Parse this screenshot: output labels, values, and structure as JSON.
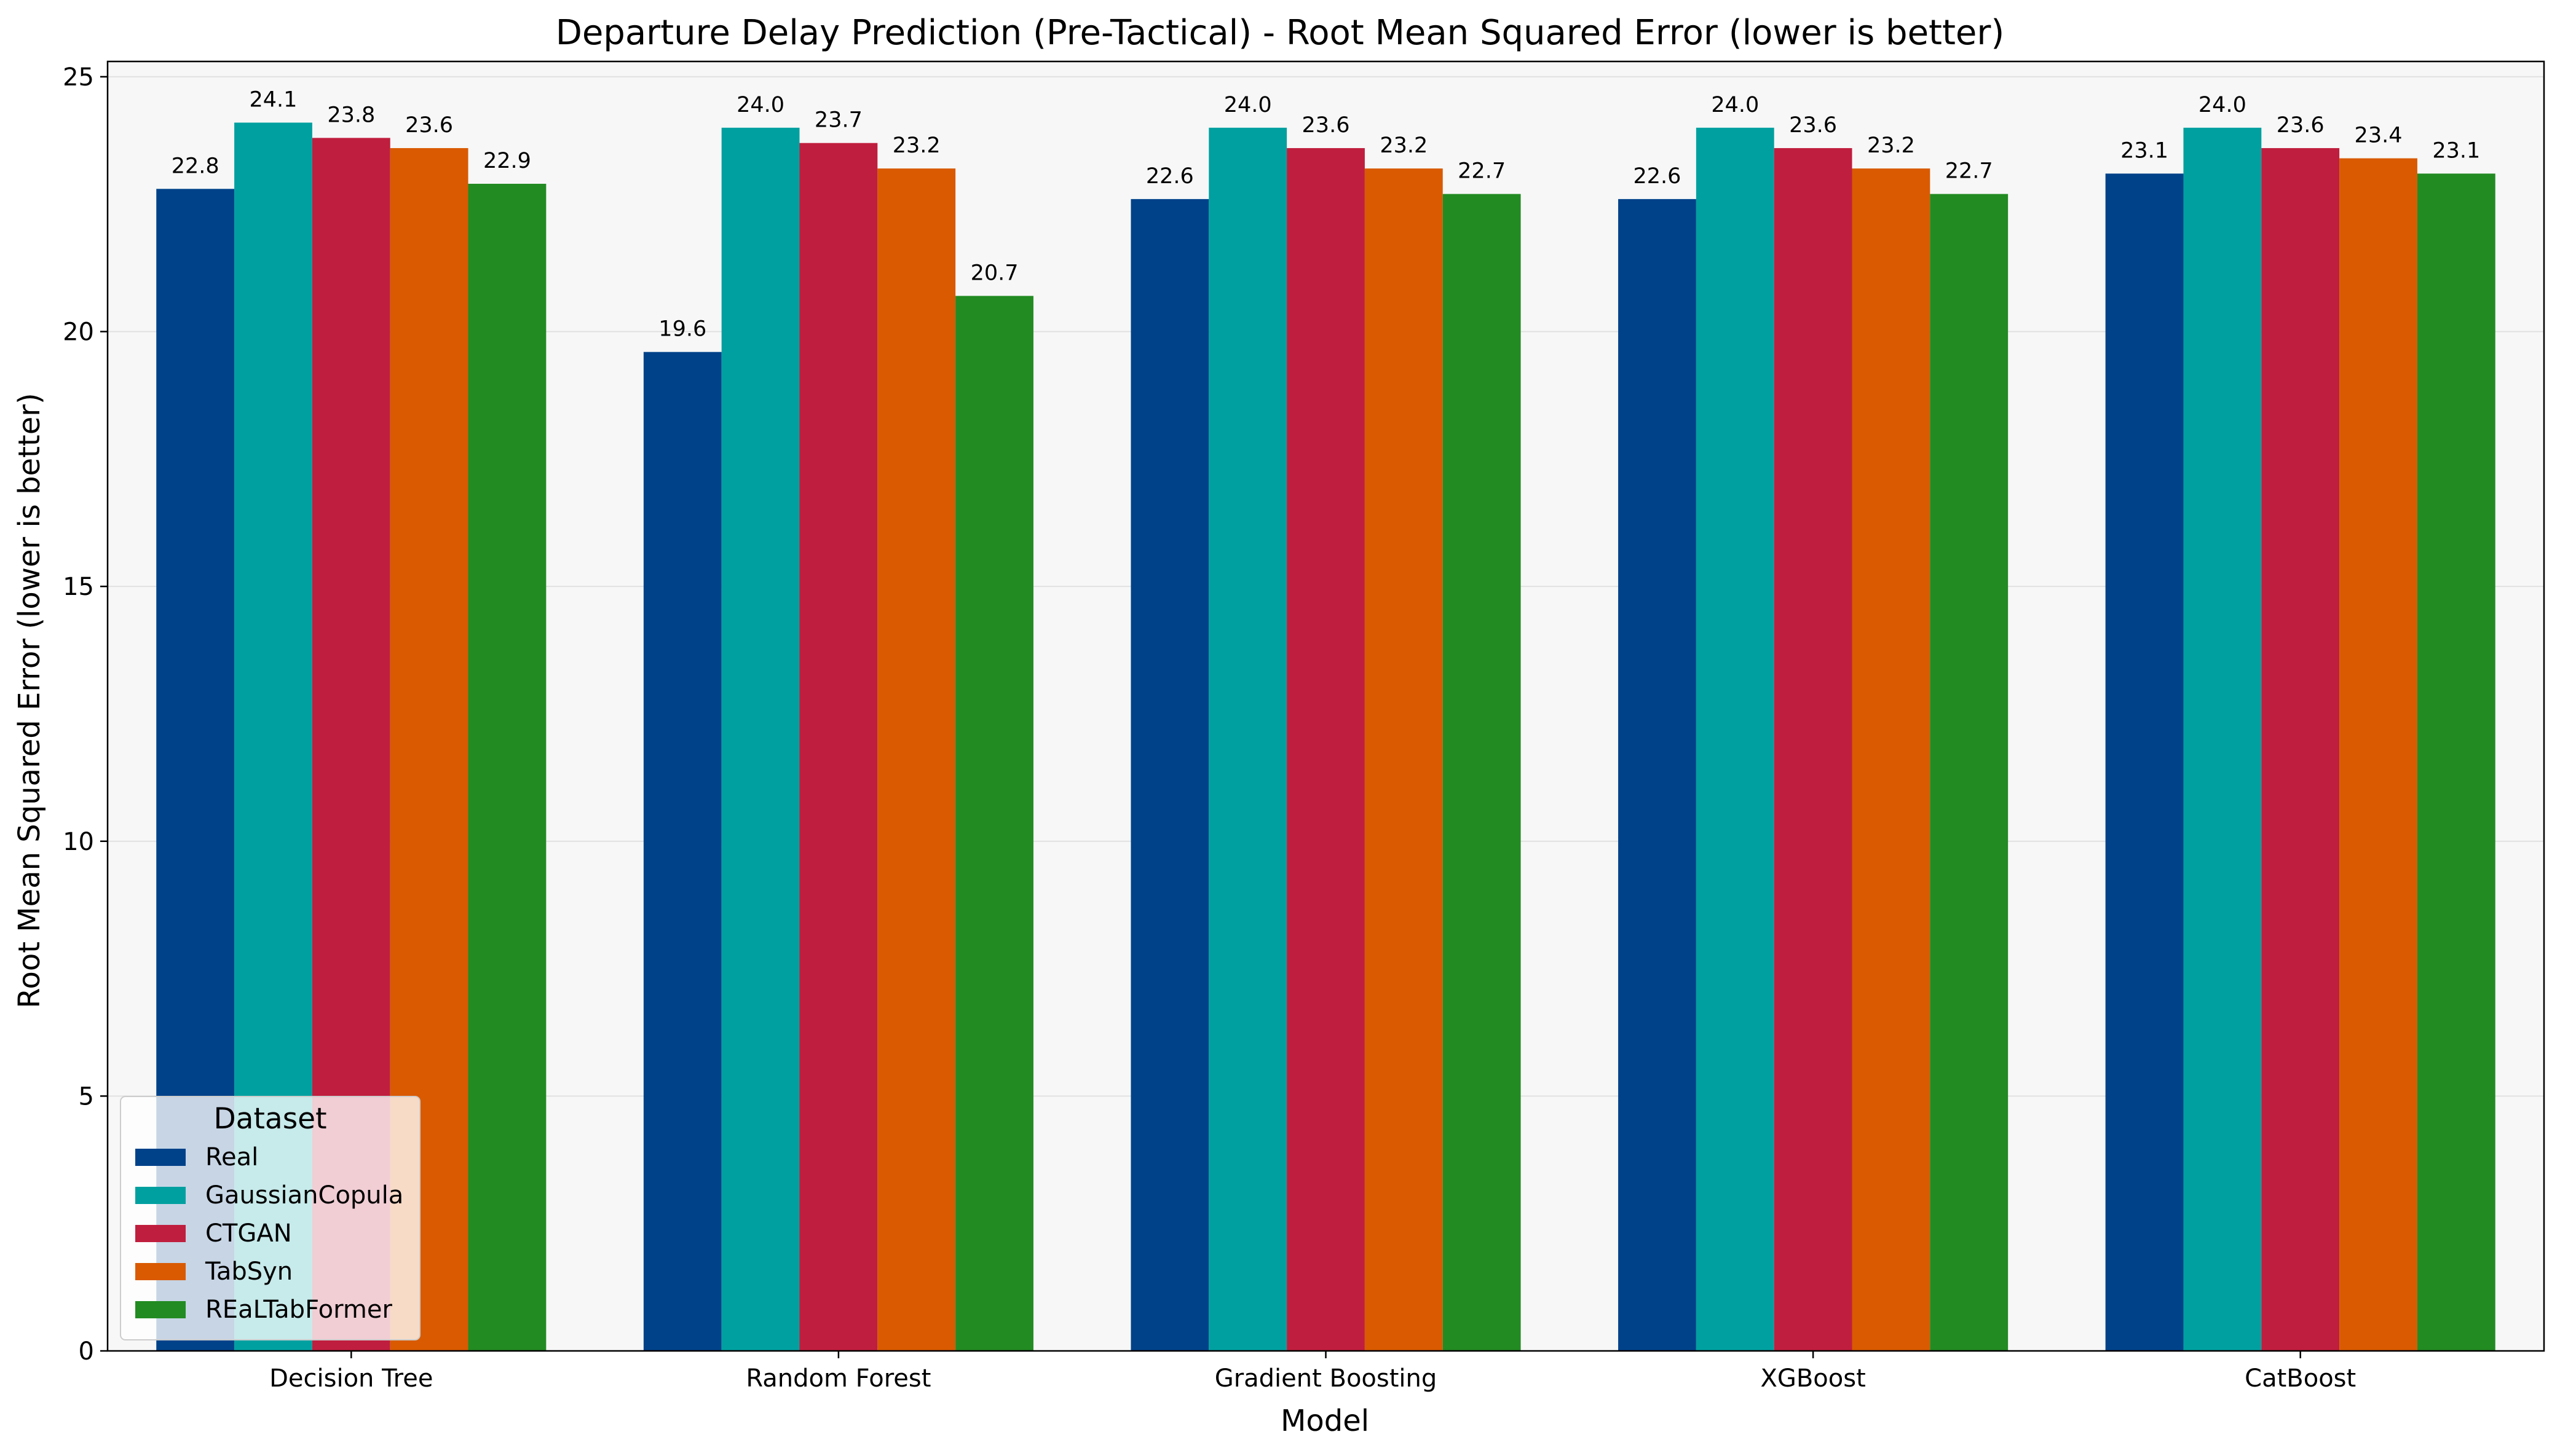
{
  "chart_data": {
    "type": "bar",
    "title": "Departure Delay Prediction (Pre-Tactical) - Root Mean Squared Error (lower is better)",
    "xlabel": "Model",
    "ylabel": "Root Mean Squared Error (lower is better)",
    "categories": [
      "Decision Tree",
      "Random Forest",
      "Gradient Boosting",
      "XGBoost",
      "CatBoost"
    ],
    "ylim": [
      0,
      25.3
    ],
    "yticks": [
      0,
      5,
      10,
      15,
      20,
      25
    ],
    "grid": "horizontal",
    "legend": {
      "title": "Dataset",
      "placement": "lower-left"
    },
    "series": [
      {
        "name": "Real",
        "color": "#00428a",
        "values": [
          22.8,
          19.6,
          22.6,
          22.6,
          23.1
        ],
        "labels": [
          "22.8",
          "19.6",
          "22.6",
          "22.6",
          "23.1"
        ]
      },
      {
        "name": "GaussianCopula",
        "color": "#00a0a0",
        "values": [
          24.1,
          24.0,
          24.0,
          24.0,
          24.0
        ],
        "labels": [
          "24.1",
          "24.0",
          "24.0",
          "24.0",
          "24.0"
        ]
      },
      {
        "name": "CTGAN",
        "color": "#c01e3e",
        "values": [
          23.8,
          23.7,
          23.6,
          23.6,
          23.6
        ],
        "labels": [
          "23.8",
          "23.7",
          "23.6",
          "23.6",
          "23.6"
        ]
      },
      {
        "name": "TabSyn",
        "color": "#d95a00",
        "values": [
          23.6,
          23.2,
          23.2,
          23.2,
          23.4
        ],
        "labels": [
          "23.6",
          "23.2",
          "23.2",
          "23.2",
          "23.4"
        ]
      },
      {
        "name": "REaLTabFormer",
        "color": "#228b22",
        "values": [
          22.9,
          20.7,
          22.7,
          22.7,
          23.1
        ],
        "labels": [
          "22.9",
          "20.7",
          "22.7",
          "22.7",
          "23.1"
        ]
      }
    ],
    "colors": {
      "plot_background": "#f7f7f7",
      "grid": "#e1e1e1"
    }
  }
}
